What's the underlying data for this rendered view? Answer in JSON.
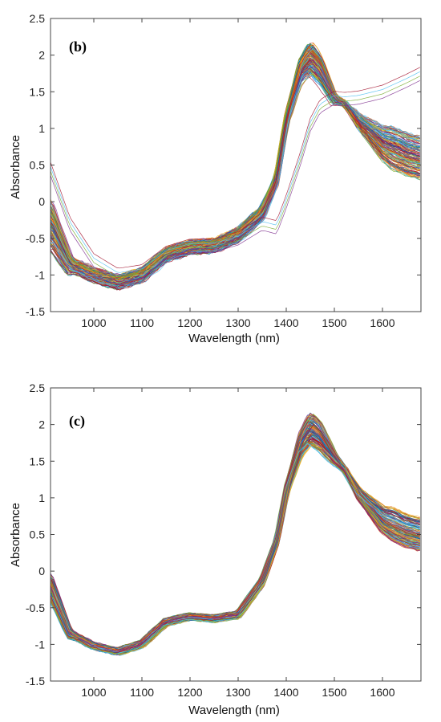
{
  "chart_data": [
    {
      "type": "line",
      "panel_label": "(b)",
      "xlabel": "Wavelength (nm)",
      "ylabel": "Absorbance",
      "xlim": [
        910,
        1680
      ],
      "ylim": [
        -1.5,
        2.5
      ],
      "xticks": [
        1000,
        1100,
        1200,
        1300,
        1400,
        1500,
        1600
      ],
      "yticks": [
        -1.5,
        -1,
        -0.5,
        0,
        0.5,
        1,
        1.5,
        2,
        2.5
      ],
      "grid": false,
      "series_count": 140,
      "x": [
        910,
        950,
        1000,
        1050,
        1100,
        1150,
        1200,
        1250,
        1300,
        1350,
        1380,
        1400,
        1430,
        1450,
        1470,
        1500,
        1520,
        1550,
        1600,
        1650,
        1680
      ],
      "typical_profile": [
        -0.3,
        -0.85,
        -1.0,
        -1.1,
        -1.0,
        -0.72,
        -0.62,
        -0.6,
        -0.45,
        -0.15,
        0.3,
        1.1,
        1.8,
        1.95,
        1.8,
        1.4,
        1.35,
        1.1,
        0.8,
        0.65,
        0.6
      ],
      "spread_at_peak": [
        1.6,
        2.1
      ],
      "outlier_profiles": [
        {
          "y": [
            0.45,
            -0.3,
            -0.8,
            -1.0,
            -0.95,
            -0.7,
            -0.6,
            -0.6,
            -0.5,
            -0.3,
            -0.35,
            0.0,
            0.6,
            1.05,
            1.3,
            1.42,
            1.4,
            1.42,
            1.5,
            1.65,
            1.75
          ]
        }
      ]
    },
    {
      "type": "line",
      "panel_label": "(c)",
      "xlabel": "Wavelength (nm)",
      "ylabel": "Absorbance",
      "xlim": [
        910,
        1680
      ],
      "ylim": [
        -1.5,
        2.5
      ],
      "xticks": [
        1000,
        1100,
        1200,
        1300,
        1400,
        1500,
        1600
      ],
      "yticks": [
        -1.5,
        -1,
        -0.5,
        0,
        0.5,
        1,
        1.5,
        2,
        2.5
      ],
      "grid": false,
      "series_count": 140,
      "x": [
        910,
        950,
        1000,
        1050,
        1100,
        1150,
        1200,
        1250,
        1300,
        1350,
        1380,
        1400,
        1430,
        1450,
        1470,
        1500,
        1520,
        1550,
        1600,
        1650,
        1680
      ],
      "typical_profile": [
        -0.2,
        -0.85,
        -1.02,
        -1.1,
        -1.0,
        -0.7,
        -0.62,
        -0.65,
        -0.6,
        -0.15,
        0.4,
        1.1,
        1.75,
        1.95,
        1.85,
        1.55,
        1.4,
        1.05,
        0.7,
        0.55,
        0.5
      ],
      "spread_at_peak": [
        1.65,
        2.1
      ]
    }
  ]
}
